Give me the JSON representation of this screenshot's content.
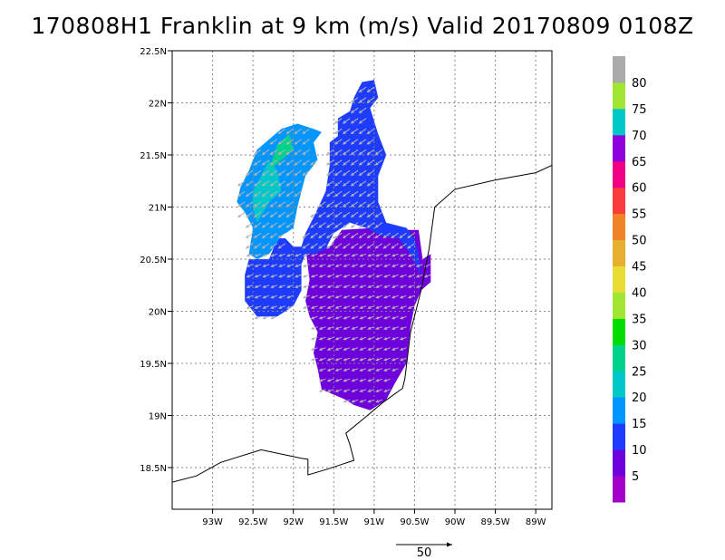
{
  "title": "170808H1 Franklin at 9 km (m/s) Valid 20170809 0108Z",
  "map": {
    "lon_range": [
      -93.5,
      -88.8
    ],
    "lat_range": [
      18.1,
      22.5
    ],
    "x_ticks": [
      {
        "lon": -93.0,
        "label": "93W"
      },
      {
        "lon": -92.5,
        "label": "92.5W"
      },
      {
        "lon": -92.0,
        "label": "92W"
      },
      {
        "lon": -91.5,
        "label": "91.5W"
      },
      {
        "lon": -91.0,
        "label": "91W"
      },
      {
        "lon": -90.5,
        "label": "90.5W"
      },
      {
        "lon": -90.0,
        "label": "90W"
      },
      {
        "lon": -89.5,
        "label": "89.5W"
      },
      {
        "lon": -89.0,
        "label": "89W"
      }
    ],
    "y_ticks": [
      {
        "lat": 18.5,
        "label": "18.5N"
      },
      {
        "lat": 19.0,
        "label": "19N"
      },
      {
        "lat": 19.5,
        "label": "19.5N"
      },
      {
        "lat": 20.0,
        "label": "20N"
      },
      {
        "lat": 20.5,
        "label": "20.5N"
      },
      {
        "lat": 21.0,
        "label": "21N"
      },
      {
        "lat": 21.5,
        "label": "21.5N"
      },
      {
        "lat": 22.0,
        "label": "22N"
      },
      {
        "lat": 22.5,
        "label": "22.5N"
      }
    ],
    "coastline": [
      [
        -93.5,
        18.36
      ],
      [
        -93.2,
        18.42
      ],
      [
        -92.9,
        18.55
      ],
      [
        -92.4,
        18.67
      ],
      [
        -91.9,
        18.59
      ],
      [
        -91.82,
        18.58
      ],
      [
        -91.82,
        18.43
      ],
      [
        -91.6,
        18.48
      ],
      [
        -91.25,
        18.57
      ],
      [
        -91.3,
        18.72
      ],
      [
        -91.35,
        18.83
      ],
      [
        -91.1,
        18.99
      ],
      [
        -90.9,
        19.12
      ],
      [
        -90.65,
        19.26
      ],
      [
        -90.62,
        19.35
      ],
      [
        -90.55,
        19.8
      ],
      [
        -90.42,
        20.2
      ],
      [
        -90.32,
        20.6
      ],
      [
        -90.25,
        21.0
      ],
      [
        -90.0,
        21.17
      ],
      [
        -89.5,
        21.26
      ],
      [
        -89.0,
        21.33
      ],
      [
        -88.8,
        21.4
      ]
    ],
    "wind_regions": [
      {
        "speed_class": "5-10",
        "polygon": [
          [
            -91.85,
            20.62
          ],
          [
            -91.55,
            20.62
          ],
          [
            -91.4,
            20.78
          ],
          [
            -91.0,
            20.8
          ],
          [
            -90.8,
            20.78
          ],
          [
            -90.45,
            20.78
          ],
          [
            -90.4,
            20.5
          ],
          [
            -90.3,
            20.55
          ],
          [
            -90.3,
            20.28
          ],
          [
            -90.42,
            20.2
          ],
          [
            -90.5,
            20.05
          ],
          [
            -90.55,
            19.85
          ],
          [
            -90.6,
            19.5
          ],
          [
            -90.75,
            19.3
          ],
          [
            -90.85,
            19.15
          ],
          [
            -91.05,
            19.05
          ],
          [
            -91.25,
            19.1
          ],
          [
            -91.35,
            19.15
          ],
          [
            -91.5,
            19.2
          ],
          [
            -91.65,
            19.25
          ],
          [
            -91.7,
            19.45
          ],
          [
            -91.75,
            19.6
          ],
          [
            -91.7,
            19.8
          ],
          [
            -91.8,
            19.95
          ],
          [
            -91.85,
            20.1
          ],
          [
            -91.8,
            20.3
          ]
        ]
      },
      {
        "speed_class": "10-15",
        "polygon": [
          [
            -92.55,
            20.5
          ],
          [
            -92.3,
            20.5
          ],
          [
            -92.2,
            20.7
          ],
          [
            -92.1,
            20.7
          ],
          [
            -92.0,
            20.62
          ],
          [
            -91.9,
            20.62
          ],
          [
            -91.85,
            20.75
          ],
          [
            -91.75,
            20.9
          ],
          [
            -91.6,
            21.15
          ],
          [
            -91.55,
            21.4
          ],
          [
            -91.55,
            21.62
          ],
          [
            -91.45,
            21.68
          ],
          [
            -91.45,
            21.85
          ],
          [
            -91.3,
            21.92
          ],
          [
            -91.25,
            22.05
          ],
          [
            -91.15,
            22.2
          ],
          [
            -91.0,
            22.22
          ],
          [
            -90.95,
            22.05
          ],
          [
            -91.05,
            21.95
          ],
          [
            -90.95,
            21.7
          ],
          [
            -90.85,
            21.5
          ],
          [
            -90.95,
            21.3
          ],
          [
            -90.95,
            21.05
          ],
          [
            -90.85,
            20.85
          ],
          [
            -90.6,
            20.8
          ],
          [
            -90.5,
            20.7
          ],
          [
            -90.45,
            20.55
          ],
          [
            -90.42,
            20.35
          ],
          [
            -90.55,
            20.55
          ],
          [
            -90.7,
            20.7
          ],
          [
            -90.9,
            20.72
          ],
          [
            -91.1,
            20.8
          ],
          [
            -91.3,
            20.85
          ],
          [
            -91.5,
            20.75
          ],
          [
            -91.6,
            20.6
          ],
          [
            -91.75,
            20.55
          ],
          [
            -91.85,
            20.55
          ],
          [
            -91.9,
            20.45
          ],
          [
            -91.9,
            20.2
          ],
          [
            -92.0,
            20.05
          ],
          [
            -92.2,
            19.95
          ],
          [
            -92.45,
            19.95
          ],
          [
            -92.6,
            20.1
          ],
          [
            -92.6,
            20.35
          ]
        ]
      },
      {
        "speed_class": "15-20",
        "polygon": [
          [
            -92.55,
            20.55
          ],
          [
            -92.5,
            20.8
          ],
          [
            -92.6,
            20.95
          ],
          [
            -92.7,
            21.05
          ],
          [
            -92.65,
            21.2
          ],
          [
            -92.55,
            21.35
          ],
          [
            -92.45,
            21.55
          ],
          [
            -92.3,
            21.65
          ],
          [
            -92.15,
            21.75
          ],
          [
            -91.95,
            21.8
          ],
          [
            -91.75,
            21.75
          ],
          [
            -91.65,
            21.72
          ],
          [
            -91.75,
            21.62
          ],
          [
            -91.7,
            21.45
          ],
          [
            -91.85,
            21.3
          ],
          [
            -91.9,
            21.15
          ],
          [
            -91.95,
            21.0
          ],
          [
            -92.0,
            20.8
          ],
          [
            -92.15,
            20.72
          ],
          [
            -92.3,
            20.55
          ],
          [
            -92.45,
            20.5
          ]
        ]
      },
      {
        "speed_class": "20-25",
        "polygon": [
          [
            -92.45,
            20.85
          ],
          [
            -92.3,
            21.05
          ],
          [
            -92.15,
            21.15
          ],
          [
            -92.2,
            21.35
          ],
          [
            -92.3,
            21.45
          ],
          [
            -92.4,
            21.3
          ],
          [
            -92.5,
            21.15
          ],
          [
            -92.5,
            21.0
          ]
        ]
      },
      {
        "speed_class": "25-30",
        "polygon": [
          [
            -92.3,
            21.35
          ],
          [
            -92.2,
            21.6
          ],
          [
            -92.05,
            21.7
          ],
          [
            -92.0,
            21.55
          ],
          [
            -92.15,
            21.45
          ]
        ]
      }
    ]
  },
  "colorbar": {
    "colors": [
      "#a000c8",
      "#6e00dc",
      "#1e3cff",
      "#0096ff",
      "#00c8c8",
      "#00d28c",
      "#00dc00",
      "#a0e632",
      "#e6dc32",
      "#e6af2d",
      "#f08228",
      "#fa3c3c",
      "#f00082",
      "#8c00dc",
      "#00c8c8",
      "#a0e632",
      "#aaaaaa"
    ],
    "labels": [
      "5",
      "10",
      "15",
      "20",
      "25",
      "30",
      "35",
      "40",
      "45",
      "50",
      "55",
      "60",
      "65",
      "70",
      "75",
      "80"
    ]
  },
  "reference_vector": {
    "label": "50"
  }
}
